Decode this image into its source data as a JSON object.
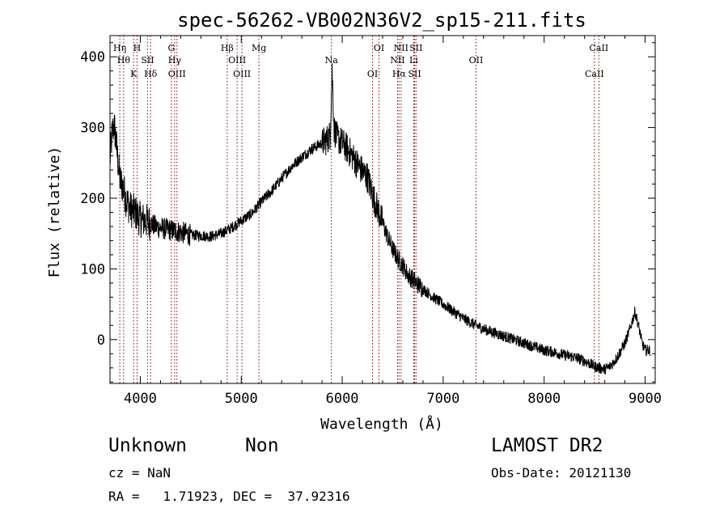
{
  "chart_data": {
    "type": "line",
    "title": "spec-56262-VB002N36V2_sp15-211.fits",
    "xlabel": "Wavelength (Å)",
    "ylabel": "Flux (relative)",
    "xlim": [
      3700,
      9100
    ],
    "ylim": [
      -62,
      430
    ],
    "x_ticks": [
      4000,
      5000,
      6000,
      7000,
      8000,
      9000
    ],
    "y_ticks": [
      0,
      100,
      200,
      300,
      400
    ],
    "grid": false,
    "series": [
      {
        "x": [
          3700,
          3720,
          3740,
          3760,
          3780,
          3800,
          3830,
          3860,
          3900,
          3950,
          4000,
          4050,
          4100,
          4150,
          4200,
          4300,
          4400,
          4500,
          4600,
          4700,
          4800,
          4900,
          5000,
          5100,
          5200,
          5300,
          5400,
          5500,
          5600,
          5700,
          5800,
          5850,
          5880,
          5900,
          5920,
          5950,
          6000,
          6050,
          6100,
          6150,
          6200,
          6250,
          6300,
          6350,
          6400,
          6450,
          6500,
          6550,
          6600,
          6650,
          6700,
          6750,
          6800,
          6900,
          7000,
          7100,
          7200,
          7300,
          7400,
          7500,
          7600,
          7700,
          7800,
          7900,
          8000,
          8100,
          8200,
          8300,
          8400,
          8500,
          8550,
          8600,
          8650,
          8700,
          8750,
          8800,
          8850,
          8880,
          8900,
          8920,
          8950,
          8970,
          9000
        ],
        "y": [
          255,
          290,
          305,
          280,
          250,
          225,
          215,
          198,
          185,
          180,
          170,
          168,
          165,
          160,
          158,
          155,
          152,
          148,
          147,
          146,
          150,
          158,
          168,
          178,
          195,
          210,
          228,
          245,
          258,
          270,
          278,
          283,
          290,
          380,
          298,
          285,
          278,
          270,
          260,
          248,
          238,
          230,
          205,
          185,
          165,
          145,
          128,
          115,
          105,
          92,
          85,
          78,
          72,
          60,
          50,
          40,
          30,
          22,
          15,
          10,
          5,
          0,
          -5,
          -10,
          -15,
          -18,
          -22,
          -25,
          -30,
          -38,
          -40,
          -42,
          -38,
          -30,
          -18,
          -5,
          15,
          30,
          40,
          28,
          10,
          -5,
          -15
        ]
      }
    ],
    "lines": [
      {
        "lambda": 3797,
        "label": "Hη"
      },
      {
        "lambda": 3835,
        "label": "Hθ"
      },
      {
        "lambda": 3934,
        "label": "K"
      },
      {
        "lambda": 3968,
        "label": "H"
      },
      {
        "lambda": 4072,
        "label": "SII"
      },
      {
        "lambda": 4102,
        "label": "Hδ"
      },
      {
        "lambda": 4308,
        "label": "G"
      },
      {
        "lambda": 4340,
        "label": "Hγ"
      },
      {
        "lambda": 4363,
        "label": "OIII"
      },
      {
        "lambda": 4861,
        "label": "Hβ"
      },
      {
        "lambda": 4959,
        "label": "OIII"
      },
      {
        "lambda": 5007,
        "label": "OIII"
      },
      {
        "lambda": 5175,
        "label": "Mg"
      },
      {
        "lambda": 5893,
        "label": "Na"
      },
      {
        "lambda": 6300,
        "label": "OI"
      },
      {
        "lambda": 6364,
        "label": "OI"
      },
      {
        "lambda": 6548,
        "label": "NII"
      },
      {
        "lambda": 6563,
        "label": "Hα"
      },
      {
        "lambda": 6583,
        "label": "NII"
      },
      {
        "lambda": 6708,
        "label": "Li"
      },
      {
        "lambda": 6717,
        "label": "SII"
      },
      {
        "lambda": 6731,
        "label": "SII"
      },
      {
        "lambda": 7325,
        "label": "OII"
      },
      {
        "lambda": 8498,
        "label": "CaII"
      },
      {
        "lambda": 8542,
        "label": "CaII"
      }
    ]
  },
  "info": {
    "object_class": "Unknown",
    "subclass": "Non",
    "survey": "LAMOST DR2",
    "cz": "cz = NaN",
    "obs_date": "Obs-Date: 20121130",
    "coords": "RA =   1.71923, DEC =  37.92316"
  },
  "colors": {
    "spectrum": "#000000",
    "line_markers": "#8b0000"
  }
}
